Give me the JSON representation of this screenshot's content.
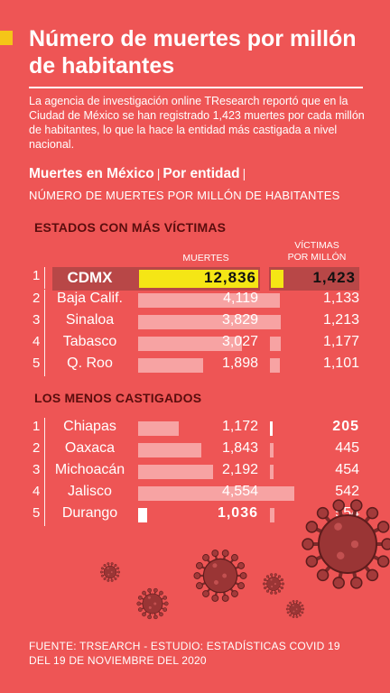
{
  "header": {
    "title": "Número de muertes por millón de habitantes",
    "intro": "La agencia de investigación online TResearch reportó que en la Ciudad de México se han registrado 1,423 muertes por cada millón de habitantes, lo que la hace la entidad más castigada a nivel nacional.",
    "subhead_a": "Muertes en México",
    "subhead_sep": "|",
    "subhead_b": "Por entidad",
    "subhead_sep2": "|",
    "subhead_line2": "NÚMERO DE MUERTES POR MILLÓN DE HABITANTES"
  },
  "colors": {
    "background": "#ee5555",
    "highlight": "#f5e615",
    "bar": "#f7a3a3",
    "section": "#5a0d0d",
    "accent": "#f5c518"
  },
  "icons": [
    "coronavirus-icon"
  ],
  "chart_data": {
    "type": "table",
    "columns": {
      "deaths": "MUERTES",
      "victims_line1": "VÍCTIMAS",
      "victims_line2": "POR MILLÓN"
    },
    "top_title": "ESTADOS CON MÁS VÍCTIMAS",
    "top": [
      {
        "rank": "1",
        "state": "CDMX",
        "deaths": 12836,
        "deaths_label": "12,836",
        "per_million": 1423,
        "per_million_label": "1,423"
      },
      {
        "rank": "2",
        "state": "Baja Calif.",
        "deaths": 4119,
        "deaths_label": "4,119",
        "per_million": 1133,
        "per_million_label": "1,133"
      },
      {
        "rank": "3",
        "state": "Sinaloa",
        "deaths": 3829,
        "deaths_label": "3,829",
        "per_million": 1213,
        "per_million_label": "1,213"
      },
      {
        "rank": "4",
        "state": "Tabasco",
        "deaths": 3027,
        "deaths_label": "3,027",
        "per_million": 1177,
        "per_million_label": "1,177"
      },
      {
        "rank": "5",
        "state": "Q. Roo",
        "deaths": 1898,
        "deaths_label": "1,898",
        "per_million": 1101,
        "per_million_label": "1,101"
      }
    ],
    "bottom_title": "LOS MENOS CASTIGADOS",
    "bottom": [
      {
        "rank": "1",
        "state": "Chiapas",
        "deaths": 1172,
        "deaths_label": "1,172",
        "per_million": 205,
        "per_million_label": "205"
      },
      {
        "rank": "2",
        "state": "Oaxaca",
        "deaths": 1843,
        "deaths_label": "1,843",
        "per_million": 445,
        "per_million_label": "445"
      },
      {
        "rank": "3",
        "state": "Michoacán",
        "deaths": 2192,
        "deaths_label": "2,192",
        "per_million": 454,
        "per_million_label": "454"
      },
      {
        "rank": "4",
        "state": "Jalisco",
        "deaths": 4554,
        "deaths_label": "4,554",
        "per_million": 542,
        "per_million_label": "542"
      },
      {
        "rank": "5",
        "state": "Durango",
        "deaths": 1036,
        "deaths_label": "1,036",
        "per_million": 554,
        "per_million_label": "554"
      }
    ]
  },
  "footer": {
    "source": "FUENTE: TRSEARCH - ESTUDIO: ESTADÍSTICAS COVID 19 DEL 19 DE NOVIEMBRE DEL 2020"
  }
}
